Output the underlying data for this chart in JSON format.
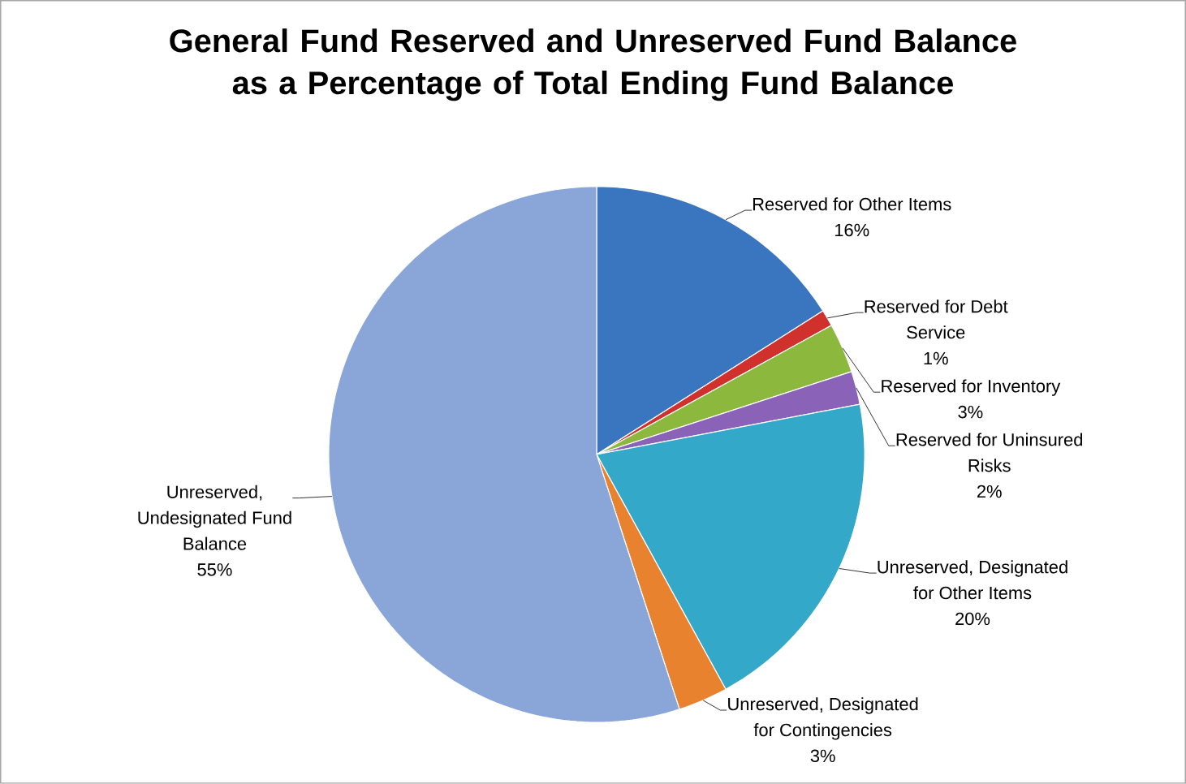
{
  "chart_data": {
    "type": "pie",
    "title": "General Fund Reserved and Unreserved Fund Balance as a Percentage of Total Ending Fund Balance",
    "categories": [
      "Reserved for Other Items",
      "Reserved for Debt Service",
      "Reserved for Inventory",
      "Reserved for Uninsured Risks",
      "Unreserved, Designated for Other Items",
      "Unreserved, Designated for Contingencies",
      "Unreserved, Undesignated Fund Balance"
    ],
    "values": [
      16,
      1,
      3,
      2,
      20,
      3,
      55
    ],
    "colors": [
      "#3a75c0",
      "#d0312d",
      "#8cb83e",
      "#8a63b8",
      "#33a8c8",
      "#e8822e",
      "#8aa5d8"
    ],
    "value_labels": [
      "16%",
      "1%",
      "3%",
      "2%",
      "20%",
      "3%",
      "55%"
    ]
  }
}
